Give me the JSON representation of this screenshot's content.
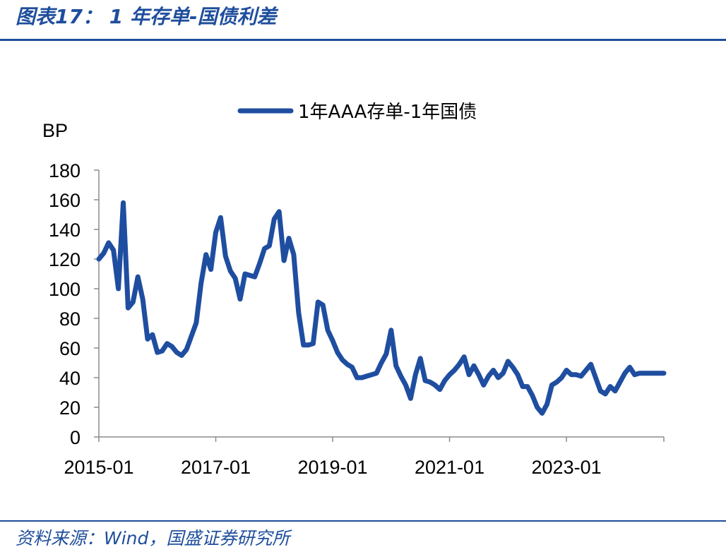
{
  "figure": {
    "title": "图表17：  1 年存单-国债利差",
    "source": "资料来源：Wind，国盛证券研究所"
  },
  "colors": {
    "accent": "#1f4e9c",
    "series": "#1f4ea0"
  },
  "chart_data": {
    "type": "line",
    "title": "",
    "xlabel": "",
    "ylabel": "BP",
    "ylim": [
      0,
      180
    ],
    "yticks": [
      0,
      20,
      40,
      60,
      80,
      100,
      120,
      140,
      160,
      180
    ],
    "xtick_labels": [
      "2015-01",
      "2017-01",
      "2019-01",
      "2021-01",
      "2023-01"
    ],
    "x_start": "2015-01",
    "x_end": "2024-09",
    "legend_position": "top",
    "grid": false,
    "series": [
      {
        "name": "1年AAA存单-1年国债",
        "x": [
          "2015-01",
          "2015-02",
          "2015-03",
          "2015-04",
          "2015-05",
          "2015-06",
          "2015-07",
          "2015-08",
          "2015-09",
          "2015-10",
          "2015-11",
          "2015-12",
          "2016-01",
          "2016-02",
          "2016-03",
          "2016-04",
          "2016-05",
          "2016-06",
          "2016-07",
          "2016-08",
          "2016-09",
          "2016-10",
          "2016-11",
          "2016-12",
          "2017-01",
          "2017-02",
          "2017-03",
          "2017-04",
          "2017-05",
          "2017-06",
          "2017-07",
          "2017-08",
          "2017-09",
          "2017-10",
          "2017-11",
          "2017-12",
          "2018-01",
          "2018-02",
          "2018-03",
          "2018-04",
          "2018-05",
          "2018-06",
          "2018-07",
          "2018-08",
          "2018-09",
          "2018-10",
          "2018-11",
          "2018-12",
          "2019-01",
          "2019-02",
          "2019-03",
          "2019-04",
          "2019-05",
          "2019-06",
          "2019-07",
          "2019-08",
          "2019-09",
          "2019-10",
          "2019-11",
          "2019-12",
          "2020-01",
          "2020-02",
          "2020-03",
          "2020-04",
          "2020-05",
          "2020-06",
          "2020-07",
          "2020-08",
          "2020-09",
          "2020-10",
          "2020-11",
          "2020-12",
          "2021-01",
          "2021-02",
          "2021-03",
          "2021-04",
          "2021-05",
          "2021-06",
          "2021-07",
          "2021-08",
          "2021-09",
          "2021-10",
          "2021-11",
          "2021-12",
          "2022-01",
          "2022-02",
          "2022-03",
          "2022-04",
          "2022-05",
          "2022-06",
          "2022-07",
          "2022-08",
          "2022-09",
          "2022-10",
          "2022-11",
          "2022-12",
          "2023-01",
          "2023-02",
          "2023-03",
          "2023-04",
          "2023-05",
          "2023-06",
          "2023-07",
          "2023-08",
          "2023-09",
          "2023-10",
          "2023-11",
          "2023-12",
          "2024-01",
          "2024-02",
          "2024-03",
          "2024-04",
          "2024-05",
          "2024-06",
          "2024-07",
          "2024-08",
          "2024-09"
        ],
        "values": [
          120,
          124,
          131,
          126,
          100,
          158,
          87,
          91,
          108,
          93,
          66,
          69,
          57,
          58,
          63,
          61,
          57,
          55,
          59,
          68,
          77,
          104,
          123,
          113,
          138,
          148,
          122,
          112,
          107,
          93,
          110,
          109,
          108,
          117,
          127,
          129,
          147,
          152,
          119,
          134,
          123,
          84,
          62,
          62,
          63,
          91,
          89,
          72,
          65,
          57,
          52,
          49,
          47,
          40,
          40,
          41,
          42,
          43,
          50,
          56,
          72,
          48,
          41,
          35,
          26,
          42,
          53,
          38,
          37,
          35,
          32,
          38,
          42,
          45,
          49,
          54,
          42,
          48,
          42,
          35,
          41,
          45,
          40,
          43,
          51,
          47,
          42,
          34,
          34,
          28,
          20,
          16,
          22,
          35,
          37,
          40,
          45,
          42,
          42,
          41,
          45,
          49,
          40,
          31,
          29,
          34,
          31,
          37,
          43,
          47,
          42,
          43,
          43,
          43,
          43,
          43,
          43
        ]
      }
    ]
  }
}
